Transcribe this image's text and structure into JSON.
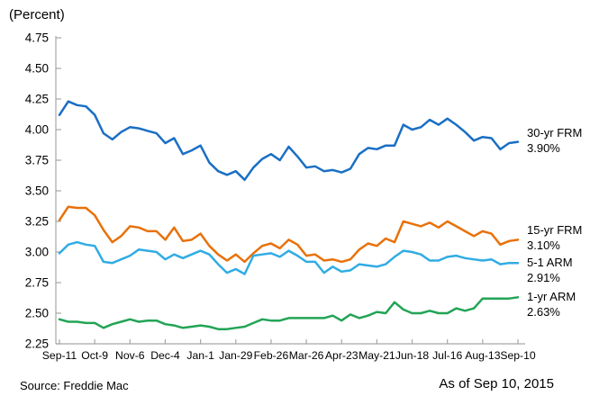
{
  "page": {
    "y_axis_title": "(Percent)",
    "source": "Source: Freddie Mac",
    "as_of": "As of Sep 10, 2015"
  },
  "chart_data": {
    "type": "line",
    "title": "(Percent)",
    "x_tick_labels": [
      "Sep-11",
      "Oct-9",
      "Nov-6",
      "Dec-4",
      "Jan-1",
      "Jan-29",
      "Feb-26",
      "Mar-26",
      "Apr-23",
      "May-21",
      "Jun-18",
      "Jul-16",
      "Aug-13",
      "Sep-10"
    ],
    "x_points_per_tick": 4,
    "y_min": 2.25,
    "y_max": 4.75,
    "y_step": 0.25,
    "grid": false,
    "legend_position": "right-of-line-ends",
    "axis_color": "#a6a6a6",
    "series": [
      {
        "name": "30-yr FRM",
        "end_label": "3.90%",
        "color": "#1a6fc4",
        "values": [
          4.12,
          4.23,
          4.2,
          4.19,
          4.12,
          3.97,
          3.92,
          3.98,
          4.02,
          4.01,
          3.99,
          3.97,
          3.89,
          3.93,
          3.8,
          3.83,
          3.87,
          3.73,
          3.66,
          3.63,
          3.66,
          3.59,
          3.69,
          3.76,
          3.8,
          3.75,
          3.86,
          3.78,
          3.69,
          3.7,
          3.66,
          3.67,
          3.65,
          3.68,
          3.8,
          3.85,
          3.84,
          3.87,
          3.87,
          4.04,
          4.0,
          4.02,
          4.08,
          4.04,
          4.09,
          4.04,
          3.98,
          3.91,
          3.94,
          3.93,
          3.84,
          3.89,
          3.9
        ]
      },
      {
        "name": "15-yr FRM",
        "end_label": "3.10%",
        "color": "#e8710a",
        "values": [
          3.26,
          3.37,
          3.36,
          3.36,
          3.3,
          3.18,
          3.08,
          3.13,
          3.21,
          3.2,
          3.17,
          3.17,
          3.1,
          3.2,
          3.09,
          3.1,
          3.15,
          3.05,
          2.98,
          2.93,
          2.98,
          2.92,
          2.99,
          3.05,
          3.07,
          3.03,
          3.1,
          3.06,
          2.97,
          2.98,
          2.93,
          2.94,
          2.92,
          2.94,
          3.02,
          3.07,
          3.05,
          3.11,
          3.08,
          3.25,
          3.23,
          3.21,
          3.24,
          3.2,
          3.25,
          3.21,
          3.17,
          3.13,
          3.17,
          3.15,
          3.06,
          3.09,
          3.1
        ]
      },
      {
        "name": "5-1 ARM",
        "end_label": "2.91%",
        "color": "#30ace4",
        "values": [
          2.99,
          3.06,
          3.08,
          3.06,
          3.05,
          2.92,
          2.91,
          2.94,
          2.97,
          3.02,
          3.01,
          3.0,
          2.94,
          2.98,
          2.95,
          2.98,
          3.01,
          2.98,
          2.9,
          2.83,
          2.86,
          2.82,
          2.97,
          2.98,
          2.99,
          2.96,
          3.01,
          2.97,
          2.92,
          2.92,
          2.83,
          2.88,
          2.84,
          2.85,
          2.9,
          2.89,
          2.88,
          2.9,
          2.96,
          3.01,
          3.0,
          2.98,
          2.93,
          2.93,
          2.96,
          2.97,
          2.95,
          2.94,
          2.93,
          2.94,
          2.9,
          2.91,
          2.91
        ]
      },
      {
        "name": "1-yr ARM",
        "end_label": "2.63%",
        "color": "#22a455",
        "values": [
          2.45,
          2.43,
          2.43,
          2.42,
          2.42,
          2.38,
          2.41,
          2.43,
          2.45,
          2.43,
          2.44,
          2.44,
          2.41,
          2.4,
          2.38,
          2.39,
          2.4,
          2.39,
          2.37,
          2.37,
          2.38,
          2.39,
          2.42,
          2.45,
          2.44,
          2.44,
          2.46,
          2.46,
          2.46,
          2.46,
          2.46,
          2.48,
          2.44,
          2.49,
          2.46,
          2.48,
          2.51,
          2.5,
          2.59,
          2.53,
          2.5,
          2.5,
          2.52,
          2.5,
          2.5,
          2.54,
          2.52,
          2.54,
          2.62,
          2.62,
          2.62,
          2.62,
          2.63
        ]
      }
    ]
  }
}
